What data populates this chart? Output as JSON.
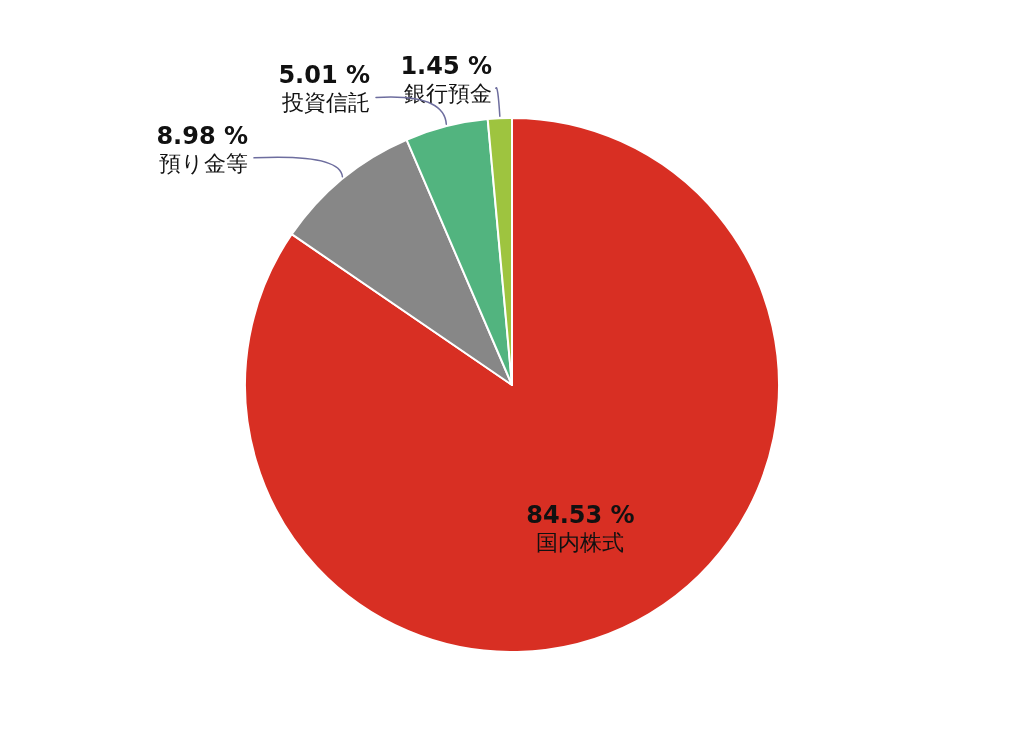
{
  "chart_data": {
    "type": "pie",
    "categories": [
      "国内株式",
      "預り金等",
      "投資信託",
      "銀行預金"
    ],
    "values": [
      84.53,
      8.98,
      5.01,
      1.45
    ],
    "value_labels": [
      "84.53 %",
      "8.98 %",
      "5.01 %",
      "1.45 %"
    ],
    "colors": [
      "#d82f23",
      "#878787",
      "#52b47f",
      "#9ec43f"
    ],
    "legend": false
  }
}
